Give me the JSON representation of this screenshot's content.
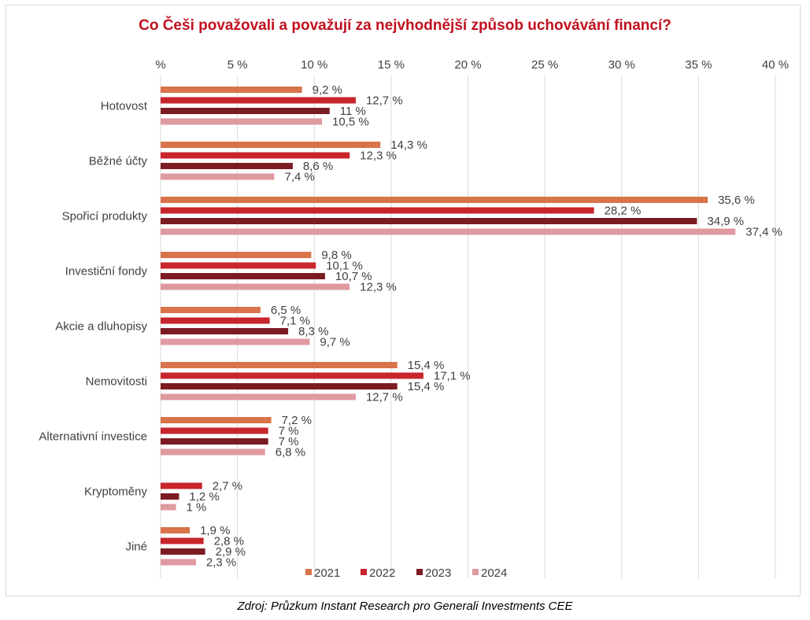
{
  "source_note": "Zdroj: Průzkum Instant Research pro Generali Investments CEE",
  "chart_data": {
    "type": "bar",
    "orientation": "horizontal",
    "title": "Co Češi považovali a považují za nejvhodnější způsob uchovávání financí?",
    "xlabel": "",
    "ylabel": "",
    "xlim": [
      0,
      40
    ],
    "grid": true,
    "legend_position": "bottom-right",
    "x_ticks": [
      "%",
      "5 %",
      "10 %",
      "15 %",
      "20 %",
      "25 %",
      "30 %",
      "35 %",
      "40 %"
    ],
    "categories": [
      "Hotovost",
      "Běžné účty",
      "Spořicí produkty",
      "Investiční fondy",
      "Akcie a dluhopisy",
      "Nemovitosti",
      "Alternativní investice",
      "Kryptoměny",
      "Jiné"
    ],
    "series": [
      {
        "name": "2021",
        "color": "#d9734a",
        "values": [
          9.2,
          14.3,
          35.6,
          9.8,
          6.5,
          15.4,
          7.2,
          null,
          1.9
        ],
        "labels": [
          "9,2 %",
          "14,3 %",
          "35,6 %",
          "9,8 %",
          "6,5 %",
          "15,4 %",
          "7,2 %",
          "",
          "1,9 %"
        ]
      },
      {
        "name": "2022",
        "color": "#c8252c",
        "values": [
          12.7,
          12.3,
          28.2,
          10.1,
          7.1,
          17.1,
          7,
          2.7,
          2.8
        ],
        "labels": [
          "12,7 %",
          "12,3 %",
          "28,2 %",
          "10,1 %",
          "7,1 %",
          "17,1 %",
          "7 %",
          "2,7 %",
          "2,8 %"
        ]
      },
      {
        "name": "2023",
        "color": "#7b1c22",
        "values": [
          11,
          8.6,
          34.9,
          10.7,
          8.3,
          15.4,
          7,
          1.2,
          2.9
        ],
        "labels": [
          "11 %",
          "8,6 %",
          "34,9 %",
          "10,7 %",
          "8,3 %",
          "15,4 %",
          "7 %",
          "1,2 %",
          "2,9 %"
        ]
      },
      {
        "name": "2024",
        "color": "#df9aa0",
        "values": [
          10.5,
          7.4,
          37.4,
          12.3,
          9.7,
          12.7,
          6.8,
          1,
          2.3
        ],
        "labels": [
          "10,5 %",
          "7,4 %",
          "37,4 %",
          "12,3 %",
          "9,7 %",
          "12,7 %",
          "6,8 %",
          "1 %",
          "2,3 %"
        ]
      }
    ]
  }
}
